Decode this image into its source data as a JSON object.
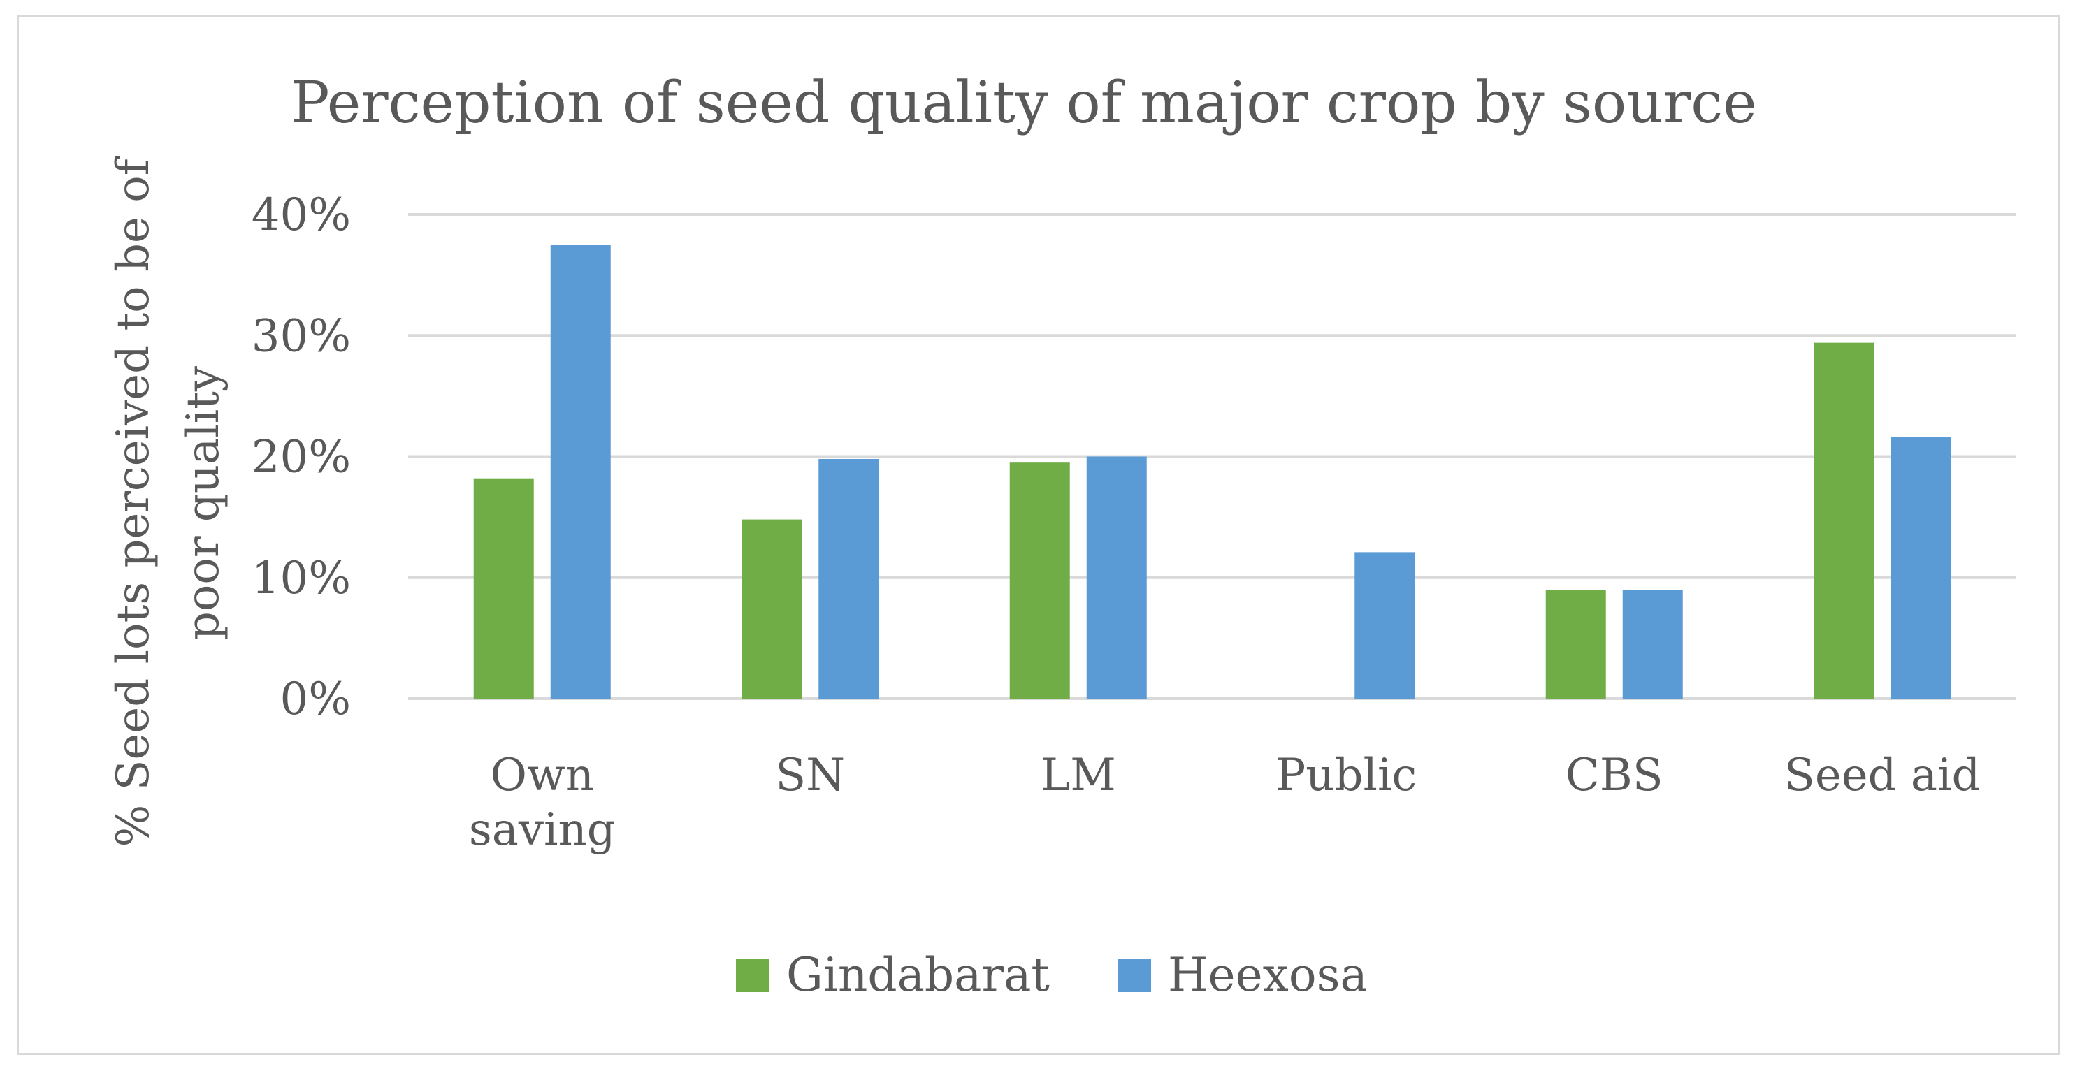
{
  "chart_data": {
    "type": "bar",
    "title": "Perception of seed quality of major crop by source",
    "ylabel": "% Seed lots perceived to be of poor quality",
    "ylabel_lines": [
      "% Seed lots perceived to be of",
      "poor quality"
    ],
    "xlabel": "",
    "categories": [
      "Own saving",
      "SN",
      "LM",
      "Public",
      "CBS",
      "Seed aid"
    ],
    "category_lines": [
      [
        "Own",
        "saving"
      ],
      [
        "SN"
      ],
      [
        "LM"
      ],
      [
        "Public"
      ],
      [
        "CBS"
      ],
      [
        "Seed aid"
      ]
    ],
    "series": [
      {
        "name": "Gindabarat",
        "color": "#70ad47",
        "values": [
          18.2,
          14.8,
          19.5,
          null,
          9.0,
          29.4
        ]
      },
      {
        "name": "Heexosa",
        "color": "#5b9bd5",
        "values": [
          37.5,
          19.8,
          20.0,
          12.1,
          9.0,
          21.6
        ]
      }
    ],
    "ylim": [
      0,
      40
    ],
    "yticks": [
      0,
      10,
      20,
      30,
      40
    ],
    "ytick_labels": [
      "0%",
      "10%",
      "20%",
      "30%",
      "40%"
    ],
    "grid": true,
    "legend_position": "bottom",
    "gridline_color": "#d9d9d9"
  }
}
